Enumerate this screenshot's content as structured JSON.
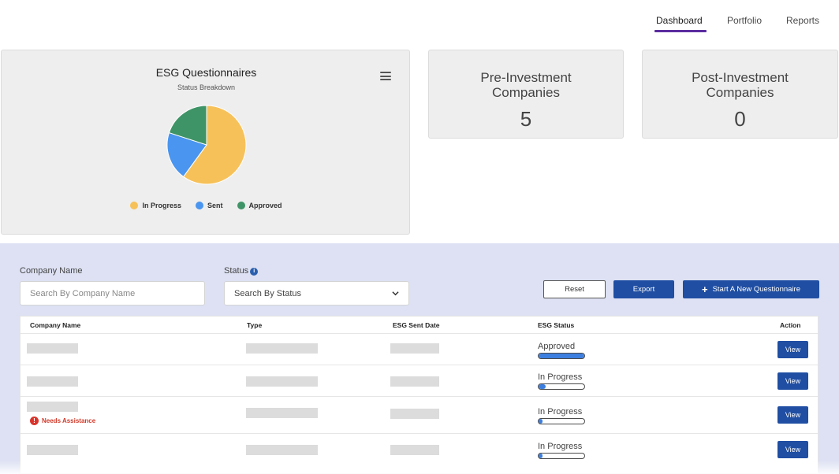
{
  "nav": {
    "items": [
      {
        "label": "Dashboard",
        "active": true
      },
      {
        "label": "Portfolio",
        "active": false
      },
      {
        "label": "Reports",
        "active": false
      }
    ],
    "accent_color": "#5b2ca0"
  },
  "questionnaire_chart": {
    "menu_icon": "hamburger-menu-icon",
    "chart_data": {
      "type": "pie",
      "title": "ESG Questionnaires",
      "subtitle": "Status Breakdown",
      "slices": [
        {
          "label": "In Progress",
          "value": 3,
          "color": "#f7c15a"
        },
        {
          "label": "Sent",
          "value": 1,
          "color": "#4a95ef"
        },
        {
          "label": "Approved",
          "value": 1,
          "color": "#3f9467"
        }
      ],
      "legend_position": "bottom"
    }
  },
  "stats": {
    "pre_investment": {
      "label": "Pre-Investment Companies",
      "value": "5"
    },
    "post_investment": {
      "label": "Post-Investment Companies",
      "value": "0"
    }
  },
  "filters": {
    "company_name_label": "Company Name",
    "company_name_placeholder": "Search By Company Name",
    "status_label": "Status",
    "status_info_icon": "info-icon",
    "status_selected": "Search By Status",
    "reset_label": "Reset",
    "export_label": "Export",
    "new_questionnaire_label": "Start A New Questionnaire"
  },
  "table": {
    "headers": [
      "Company Name",
      "Type",
      "ESG Sent Date",
      "ESG Status",
      "Action"
    ],
    "rows": [
      {
        "status": "Approved",
        "progress": 1.0,
        "action": "View",
        "needs_assistance": null
      },
      {
        "status": "In Progress",
        "progress": 0.15,
        "action": "View",
        "needs_assistance": null
      },
      {
        "status": "In Progress",
        "progress": 0.08,
        "action": "View",
        "needs_assistance": "Needs Assistance"
      },
      {
        "status": "In Progress",
        "progress": 0.08,
        "action": "View",
        "needs_assistance": null
      }
    ],
    "colors": {
      "primary": "#1f4ea3",
      "progress": "#3d7fe0",
      "alert": "#d9342b"
    }
  }
}
